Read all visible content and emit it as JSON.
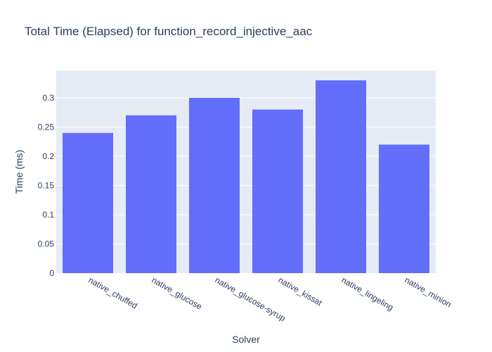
{
  "chart_data": {
    "type": "bar",
    "title": "Total Time (Elapsed) for function_record_injective_aac",
    "xlabel": "Solver",
    "ylabel": "Time (ms)",
    "categories": [
      "native_chuffed",
      "native_glucose",
      "native_glucose-syrup",
      "native_kissat",
      "native_lingeling",
      "native_minion"
    ],
    "values": [
      0.24,
      0.27,
      0.3,
      0.28,
      0.33,
      0.22
    ],
    "ylim": [
      0,
      0.347
    ],
    "yticks": [
      0,
      0.05,
      0.1,
      0.15,
      0.2,
      0.25,
      0.3
    ],
    "ytick_labels": [
      "0",
      "0.05",
      "0.1",
      "0.15",
      "0.2",
      "0.25",
      "0.3"
    ],
    "grid": true,
    "colors": {
      "bar": "#636efa",
      "plot_bg": "#e5ecf6",
      "text": "#2a3f5f"
    }
  }
}
